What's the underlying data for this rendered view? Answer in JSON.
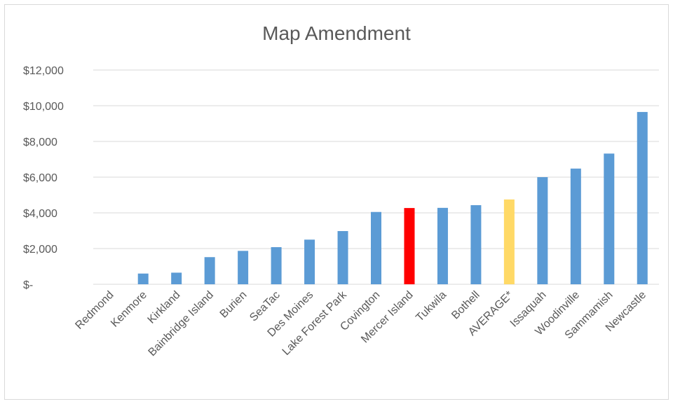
{
  "chart_data": {
    "type": "bar",
    "title": "Map Amendment",
    "xlabel": "",
    "ylabel": "",
    "ylim": [
      0,
      12000
    ],
    "y_ticks": [
      0,
      2000,
      4000,
      6000,
      8000,
      10000,
      12000
    ],
    "y_tick_labels": [
      "$-",
      "$2,000",
      "$4,000",
      "$6,000",
      "$8,000",
      "$10,000",
      "$12,000"
    ],
    "grid": true,
    "legend": "none",
    "categories": [
      "Redmond",
      "Kenmore",
      "Kirkland",
      "Bainbridge Island",
      "Burien",
      "SeaTac",
      "Des Moines",
      "Lake Forest Park",
      "Covington",
      "Mercer Island",
      "Tukwila",
      "Bothell",
      "AVERAGE*",
      "Issaquah",
      "Woodinville",
      "Sammamish",
      "Newcastle"
    ],
    "values": [
      0,
      600,
      650,
      1520,
      1870,
      2080,
      2500,
      2980,
      4050,
      4270,
      4280,
      4430,
      4750,
      6000,
      6480,
      7320,
      9650
    ],
    "colors": {
      "default": "#5b9bd5",
      "highlight": "#ff0000",
      "average": "#ffd966",
      "grid": "#d9d9d9",
      "text": "#595959"
    },
    "highlight_category": "Mercer Island",
    "average_category": "AVERAGE*"
  }
}
